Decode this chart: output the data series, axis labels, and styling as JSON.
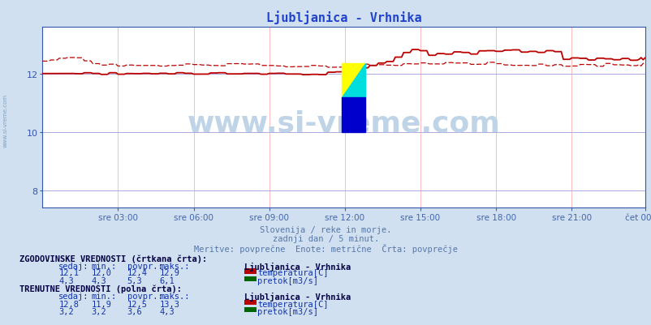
{
  "title": "Ljubljanica - Vrhnika",
  "subtitle1": "Slovenija / reke in morje.",
  "subtitle2": "zadnji dan / 5 minut.",
  "subtitle3": "Meritve: povprečne  Enote: metrične  Črta: povprečje",
  "bg_color": "#d0e0f0",
  "plot_bg_color": "#ffffff",
  "grid_color_v": "#ffbbbb",
  "grid_color_h": "#aaaadd",
  "xlabel_color": "#4466aa",
  "title_color": "#2244cc",
  "ylabel_color": "#3355aa",
  "x_labels": [
    "sre 03:00",
    "sre 06:00",
    "sre 09:00",
    "sre 12:00",
    "sre 15:00",
    "sre 18:00",
    "sre 21:00",
    "čet 00:00"
  ],
  "y_ticks": [
    8,
    10,
    12
  ],
  "ylim_min": 7.4,
  "ylim_max": 13.6,
  "temp_color": "#bb0000",
  "flow_color": "#006600",
  "watermark": "www.si-vreme.com",
  "watermark_color": "#c0d4e8",
  "watermark_fontsize": 26,
  "info_color": "#5577aa",
  "legend_header_color": "#000044",
  "legend_value_color": "#1133aa",
  "hist_label": "ZGODOVINSKE VREDNOSTI (črtkana črta):",
  "curr_label": "TRENUTNE VREDNOSTI (polna črta):",
  "col_headers": [
    "sedaj:",
    "min.:",
    "povpr.:",
    "maks.:"
  ],
  "hist_temp": [
    "12,1",
    "12,0",
    "12,4",
    "12,9"
  ],
  "hist_flow": [
    "4,3",
    "4,3",
    "5,3",
    "6,1"
  ],
  "curr_temp": [
    "12,8",
    "11,9",
    "12,5",
    "13,3"
  ],
  "curr_flow": [
    "3,2",
    "3,2",
    "3,6",
    "4,3"
  ],
  "station_name": "Ljubljanica - Vrhnika",
  "temp_label": "temperatura[C]",
  "flow_label": "pretok[m3/s]"
}
